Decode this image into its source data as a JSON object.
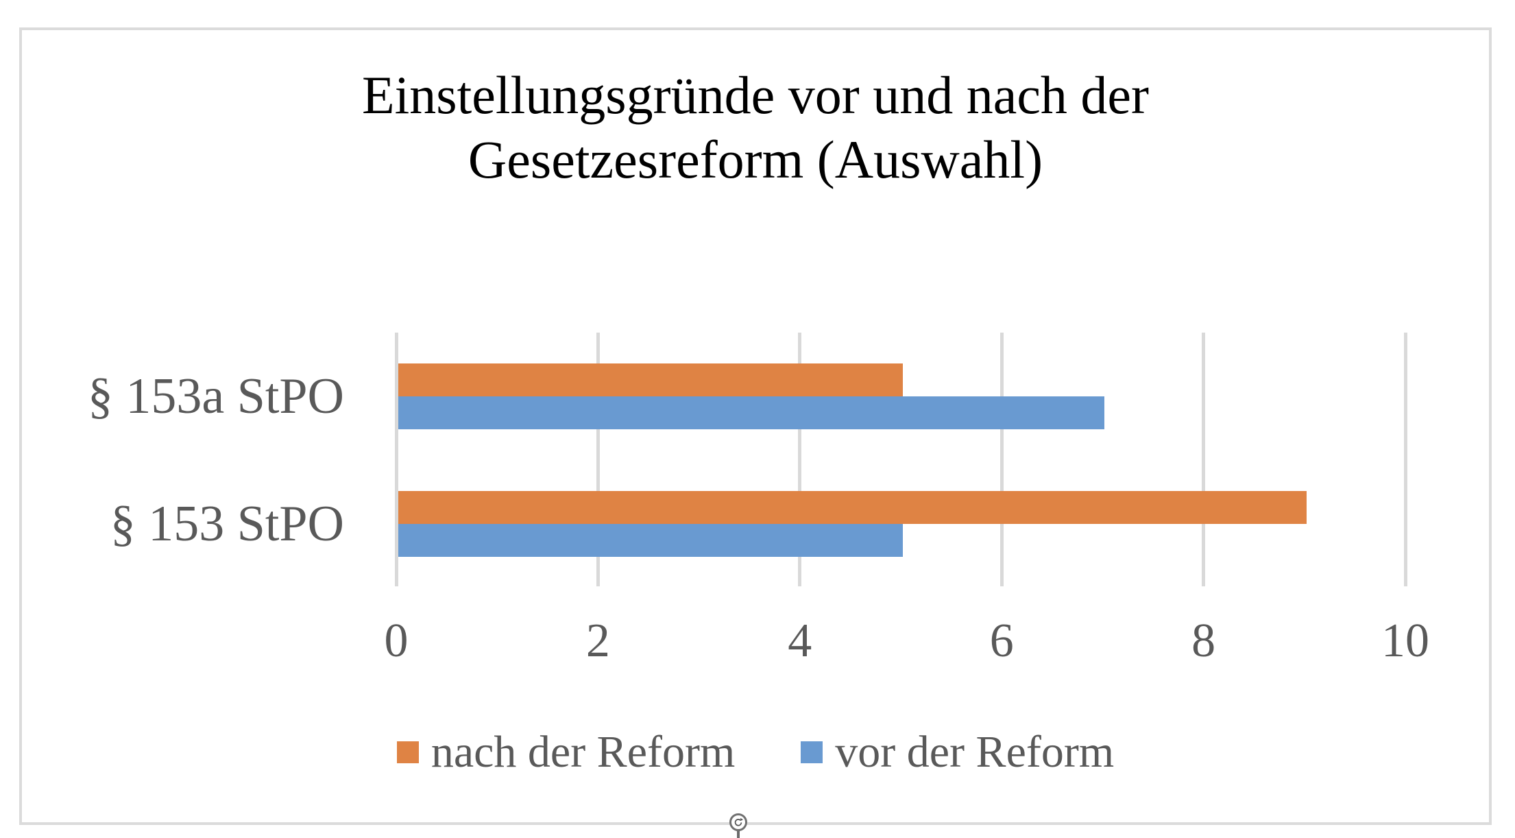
{
  "chart_data": {
    "type": "bar",
    "orientation": "horizontal",
    "title": "Einstellungsgründe vor und nach der Gesetzesreform (Auswahl)",
    "title_lines": [
      "Einstellungsgründe vor und nach der",
      "Gesetzesreform (Auswahl)"
    ],
    "categories": [
      "§ 153a StPO",
      "§ 153 StPO"
    ],
    "series": [
      {
        "name": "nach der Reform",
        "color": "#DF8344",
        "values": [
          5,
          9
        ]
      },
      {
        "name": "vor der Reform",
        "color": "#699AD1",
        "values": [
          7,
          5
        ]
      }
    ],
    "x_axis": {
      "min": 0,
      "max": 10,
      "tick_interval": 2,
      "tick_labels": [
        "0",
        "2",
        "4",
        "6",
        "8",
        "10"
      ]
    },
    "legend": {
      "position": "bottom",
      "entries": [
        "nach der Reform",
        "vor der Reform"
      ]
    },
    "grid": true,
    "styles": {
      "gridline_color": "#D9D9D9",
      "frame_border_color": "#DBDBDB",
      "axis_text_color": "#595959",
      "title_color": "#000000",
      "background": "#ffffff"
    }
  },
  "decorations": {
    "rotate_handle_icon": "rotate-clockwise-icon"
  }
}
